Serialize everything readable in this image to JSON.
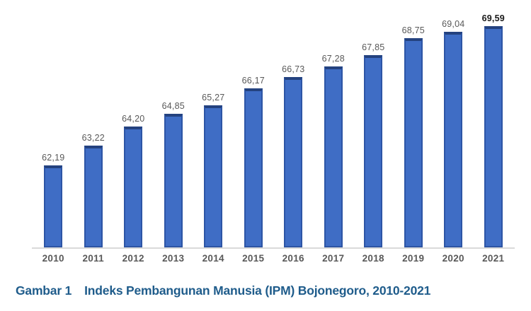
{
  "chart_data": {
    "type": "bar",
    "title": "",
    "xlabel": "",
    "ylabel": "",
    "categories": [
      "2010",
      "2011",
      "2012",
      "2013",
      "2014",
      "2015",
      "2016",
      "2017",
      "2018",
      "2019",
      "2020",
      "2021"
    ],
    "values": [
      62.19,
      63.22,
      64.2,
      64.85,
      65.27,
      66.17,
      66.73,
      67.28,
      67.85,
      68.75,
      69.04,
      69.59
    ],
    "value_labels": [
      "62,19",
      "63,22",
      "64,20",
      "64,85",
      "65,27",
      "66,17",
      "66,73",
      "67,28",
      "67,85",
      "68,75",
      "69,04",
      "69,59"
    ],
    "ylim": [
      58,
      70
    ],
    "grid": false,
    "legend": false,
    "data_labels": true,
    "last_label_bold": true,
    "bar_color": "#3f6dc5",
    "bar_border_color": "#2d55a5",
    "bar_top_color": "#24427f",
    "label_color": "#595959",
    "axis_line_color": "#d9d9d9"
  },
  "caption": {
    "figure_label": "Gambar 1",
    "text": "Indeks Pembangunan Manusia (IPM) Bojonegoro, 2010-2021",
    "color": "#1f5c8b"
  }
}
